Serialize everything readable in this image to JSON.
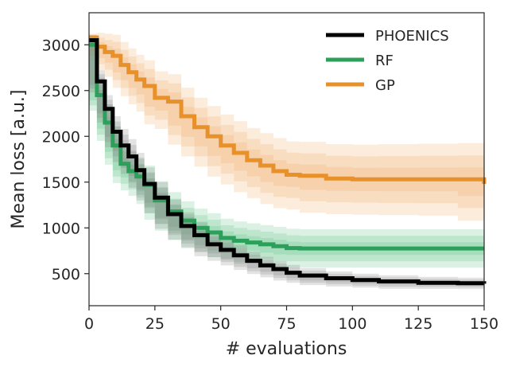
{
  "chart_data": {
    "type": "line",
    "title": "",
    "xlabel": "# evaluations",
    "ylabel": "Mean loss [a.u.]",
    "xlim": [
      0,
      150
    ],
    "ylim": [
      150,
      3350
    ],
    "grid": false,
    "legend_position": "top-right",
    "x_ticks": [
      0,
      25,
      50,
      75,
      100,
      125,
      150
    ],
    "y_ticks": [
      500,
      1000,
      1500,
      2000,
      2500,
      3000
    ],
    "x": [
      0,
      3,
      6,
      9,
      12,
      15,
      18,
      21,
      25,
      30,
      35,
      40,
      45,
      50,
      55,
      60,
      65,
      70,
      75,
      80,
      90,
      100,
      110,
      125,
      140,
      150
    ],
    "series": [
      {
        "name": "PHOENICS",
        "color": "#000000",
        "band_color": "#808080",
        "values": [
          3050,
          2600,
          2300,
          2050,
          1900,
          1780,
          1630,
          1480,
          1330,
          1150,
          1020,
          920,
          820,
          760,
          700,
          640,
          590,
          550,
          510,
          480,
          450,
          430,
          415,
          400,
          395,
          390
        ],
        "band_widths": [
          60,
          120,
          150,
          170,
          180,
          190,
          190,
          180,
          170,
          160,
          150,
          140,
          130,
          120,
          110,
          100,
          95,
          90,
          85,
          80,
          75,
          70,
          68,
          65,
          62,
          60
        ]
      },
      {
        "name": "RF",
        "color": "#2ca05a",
        "band_color": "#55c081",
        "values": [
          3000,
          2450,
          2150,
          1900,
          1700,
          1620,
          1560,
          1470,
          1300,
          1180,
          1080,
          1000,
          950,
          890,
          860,
          840,
          820,
          800,
          780,
          775,
          775,
          775,
          775,
          775,
          775,
          775
        ],
        "band_widths": [
          80,
          170,
          200,
          210,
          210,
          210,
          210,
          210,
          210,
          210,
          210,
          210,
          210,
          210,
          210,
          210,
          210,
          210,
          210,
          210,
          210,
          210,
          210,
          210,
          210,
          210
        ]
      },
      {
        "name": "GP",
        "color": "#e8902a",
        "band_color": "#f0a860",
        "values": [
          3080,
          2980,
          2920,
          2880,
          2780,
          2700,
          2620,
          2550,
          2420,
          2380,
          2220,
          2100,
          2000,
          1900,
          1820,
          1740,
          1680,
          1620,
          1580,
          1570,
          1540,
          1530,
          1530,
          1530,
          1530,
          1480
        ],
        "band_widths": [
          40,
          150,
          200,
          230,
          250,
          260,
          270,
          280,
          290,
          300,
          310,
          320,
          330,
          340,
          345,
          350,
          355,
          360,
          365,
          370,
          375,
          380,
          385,
          390,
          395,
          400
        ]
      }
    ]
  }
}
